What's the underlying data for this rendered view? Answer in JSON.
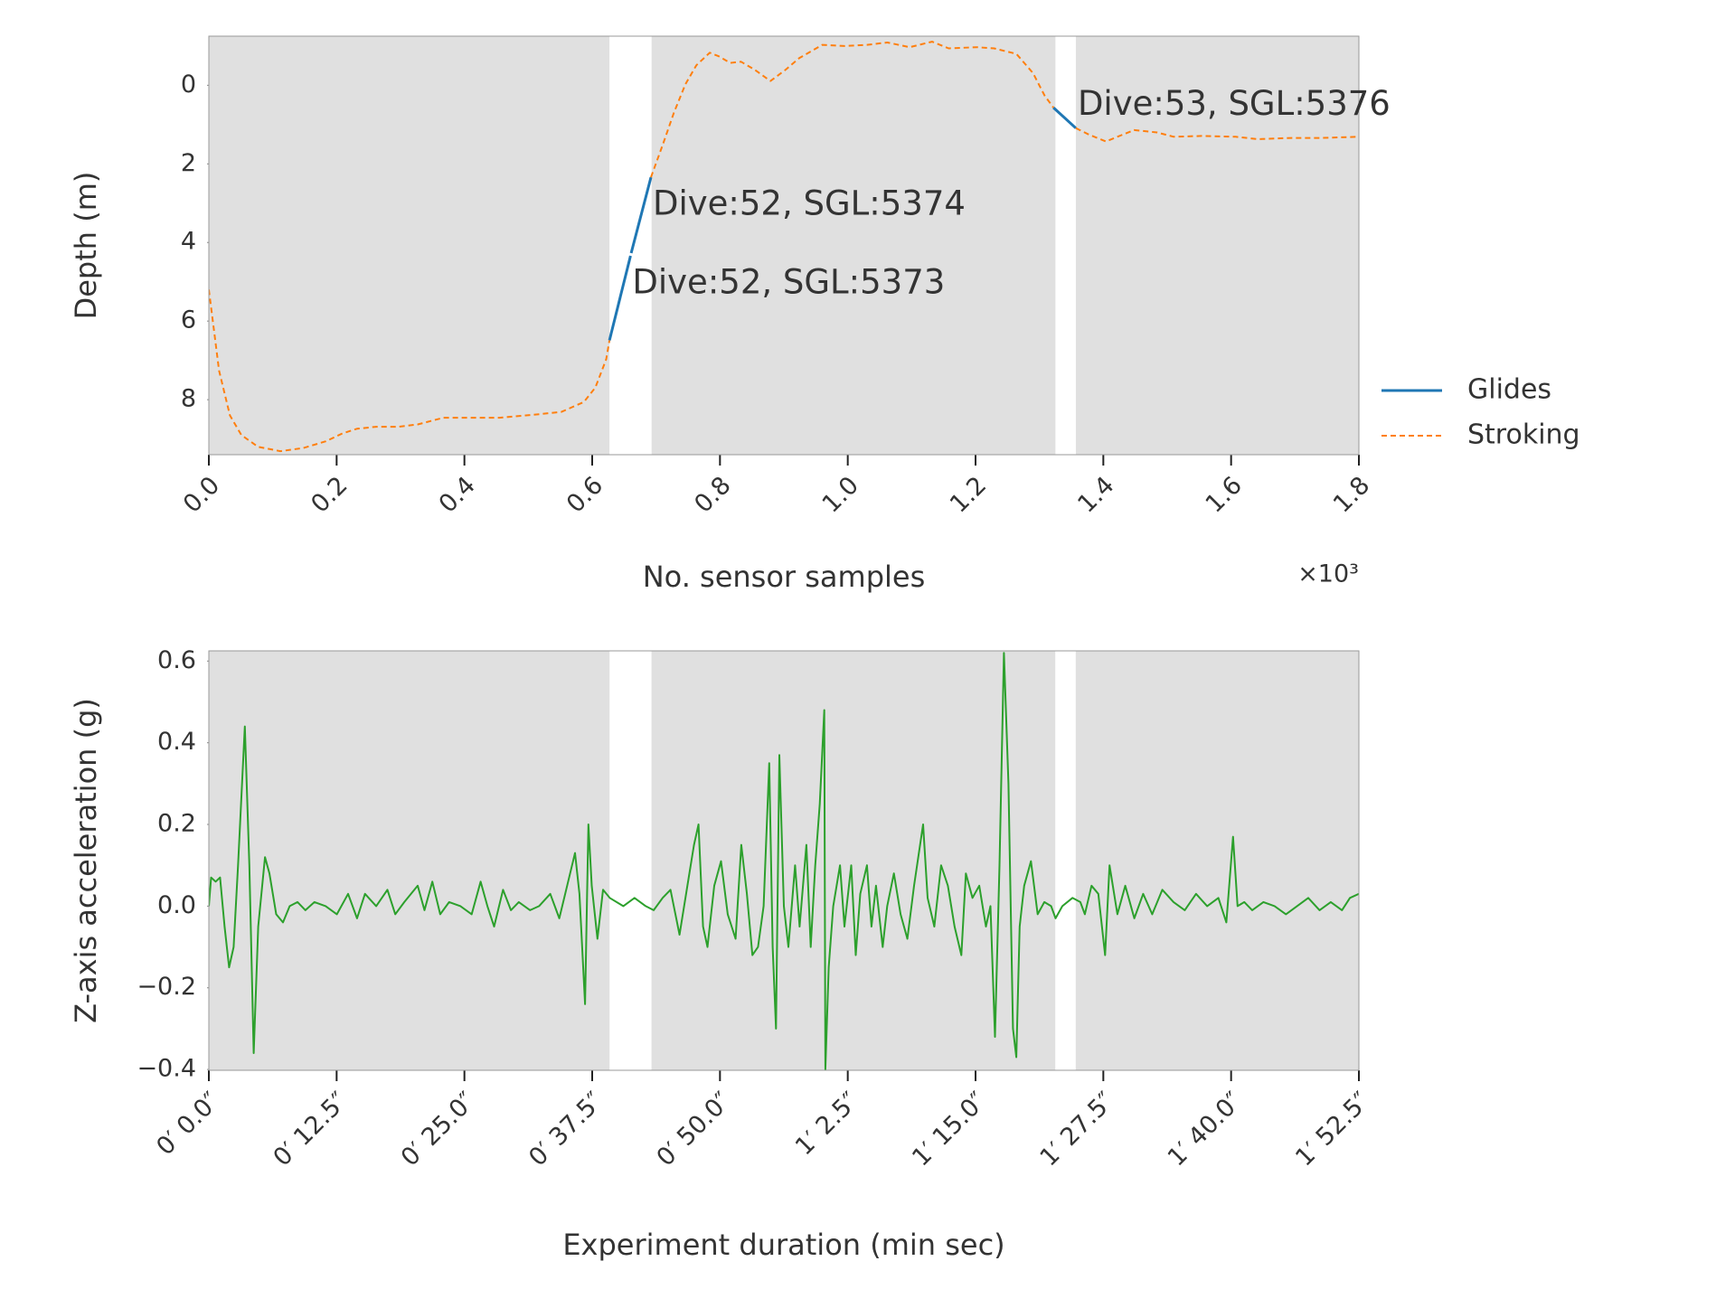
{
  "chart_data": [
    {
      "type": "line",
      "xlabel": "No. sensor samples",
      "x_offset_label": "×10³",
      "ylabel": "Depth (m)",
      "xlim": [
        0,
        1800
      ],
      "ylim": [
        9.4,
        -1.25
      ],
      "xticks": [
        {
          "value": 0,
          "label": "0.0"
        },
        {
          "value": 200,
          "label": "0.2"
        },
        {
          "value": 400,
          "label": "0.4"
        },
        {
          "value": 600,
          "label": "0.6"
        },
        {
          "value": 800,
          "label": "0.8"
        },
        {
          "value": 1000,
          "label": "1.0"
        },
        {
          "value": 1200,
          "label": "1.2"
        },
        {
          "value": 1400,
          "label": "1.4"
        },
        {
          "value": 1600,
          "label": "1.6"
        },
        {
          "value": 1800,
          "label": "1.8"
        }
      ],
      "yticks": [
        0,
        2,
        4,
        6,
        8
      ],
      "shade_color": "#e0e0e0",
      "shaded_spans": [
        [
          0,
          627
        ],
        [
          693,
          1325
        ],
        [
          1357,
          1800
        ]
      ],
      "series": [
        {
          "name": "Glides",
          "color": "#1f77b4",
          "segments": [
            {
              "x": [
                627,
                660
              ],
              "values": [
                6.49,
                4.34
              ]
            },
            {
              "x": [
                661,
                692
              ],
              "values": [
                4.27,
                2.34
              ]
            },
            {
              "x": [
                1322,
                1357
              ],
              "values": [
                0.57,
                1.09
              ]
            }
          ]
        },
        {
          "name": "Stroking",
          "color": "#ff7f0e",
          "dashed": true,
          "x": [
            0,
            16,
            33,
            51,
            77,
            112,
            148,
            183,
            209,
            232,
            262,
            297,
            327,
            367,
            411,
            455,
            517,
            552,
            587,
            605,
            622,
            627,
            660,
            692,
            711,
            728,
            746,
            763,
            784,
            798,
            816,
            833,
            854,
            879,
            903,
            924,
            960,
            995,
            1030,
            1062,
            1097,
            1132,
            1158,
            1202,
            1229,
            1264,
            1290,
            1308,
            1322,
            1340,
            1357,
            1378,
            1404,
            1422,
            1448,
            1484,
            1510,
            1554,
            1607,
            1642,
            1695,
            1739,
            1800
          ],
          "values": [
            5.2,
            7.26,
            8.4,
            8.9,
            9.2,
            9.31,
            9.23,
            9.06,
            8.86,
            8.74,
            8.69,
            8.69,
            8.63,
            8.46,
            8.46,
            8.46,
            8.37,
            8.31,
            8.06,
            7.69,
            6.97,
            6.49,
            null,
            2.34,
            1.49,
            0.69,
            -0.03,
            -0.51,
            -0.83,
            -0.74,
            -0.57,
            -0.6,
            -0.4,
            -0.11,
            -0.4,
            -0.69,
            -1.03,
            -1.0,
            -1.03,
            -1.09,
            -0.97,
            -1.11,
            -0.94,
            -0.97,
            -0.94,
            -0.8,
            -0.31,
            0.26,
            0.57,
            null,
            1.09,
            1.26,
            1.43,
            1.31,
            1.14,
            1.2,
            1.31,
            1.29,
            1.31,
            1.37,
            1.34,
            1.34,
            1.31
          ]
        }
      ],
      "annotations": [
        "Dive:52, SGL:5373",
        "Dive:52, SGL:5374",
        "Dive:53, SGL:5376"
      ],
      "legend": "right"
    },
    {
      "type": "line",
      "xlabel": "Experiment duration (min sec)",
      "ylabel": "Z-axis acceleration (g)",
      "xlim": [
        0,
        112.5
      ],
      "ylim": [
        -0.402,
        0.625
      ],
      "xticks": [
        {
          "value": 0,
          "label": "0′ 0.0″"
        },
        {
          "value": 12.5,
          "label": "0′ 12.5″"
        },
        {
          "value": 25,
          "label": "0′ 25.0″"
        },
        {
          "value": 37.5,
          "label": "0′ 37.5″"
        },
        {
          "value": 50,
          "label": "0′ 50.0″"
        },
        {
          "value": 62.5,
          "label": "1′ 2.5″"
        },
        {
          "value": 75,
          "label": "1′ 15.0″"
        },
        {
          "value": 87.5,
          "label": "1′ 27.5″"
        },
        {
          "value": 100,
          "label": "1′ 40.0″"
        },
        {
          "value": 112.5,
          "label": "1′ 52.5″"
        }
      ],
      "yticks": [
        0.6,
        0.4,
        0.2,
        {
          "value": 0,
          "label": "0.0"
        },
        {
          "value": -0.2,
          "label": "−0.2"
        },
        {
          "value": -0.4,
          "label": "−0.4"
        }
      ],
      "shade_color": "#e0e0e0",
      "shaded_spans": [
        [
          0,
          39.2
        ],
        [
          43.3,
          82.8
        ],
        [
          84.8,
          112.5
        ]
      ],
      "series": [
        {
          "color": "#2ca02c",
          "x": [
            0,
            0.22,
            0.66,
            1.1,
            1.54,
            1.98,
            2.42,
            2.86,
            3.52,
            3.96,
            4.39,
            4.83,
            5.49,
            5.93,
            6.59,
            7.25,
            7.91,
            8.68,
            9.45,
            10.33,
            11.43,
            12.52,
            13.62,
            14.5,
            15.27,
            16.37,
            17.47,
            18.24,
            19.12,
            20.43,
            21.09,
            21.86,
            22.63,
            23.51,
            24.61,
            25.71,
            26.59,
            27.25,
            27.9,
            28.78,
            29.55,
            30.32,
            31.42,
            32.3,
            33.4,
            34.28,
            35.05,
            35.82,
            36.25,
            36.8,
            37.13,
            37.46,
            38.01,
            38.56,
            39.22,
            40.54,
            41.64,
            42.74,
            43.51,
            44.39,
            45.16,
            46.04,
            46.81,
            47.46,
            47.9,
            48.34,
            48.78,
            49.44,
            50.1,
            50.76,
            51.53,
            52.08,
            52.63,
            53.17,
            53.72,
            54.27,
            54.82,
            55.15,
            55.48,
            55.81,
            56.25,
            56.69,
            57.35,
            57.79,
            58.45,
            58.88,
            59.32,
            59.76,
            60.2,
            60.31,
            60.64,
            61.08,
            61.74,
            62.18,
            62.84,
            63.28,
            63.72,
            64.38,
            64.82,
            65.26,
            65.92,
            66.36,
            67.01,
            67.67,
            68.33,
            68.99,
            69.87,
            70.31,
            70.97,
            71.63,
            72.29,
            72.95,
            73.61,
            74.05,
            74.7,
            75.36,
            76.02,
            76.46,
            76.9,
            77.34,
            77.78,
            78.22,
            78.66,
            78.99,
            79.32,
            79.76,
            80.42,
            81.08,
            81.73,
            82.39,
            82.83,
            83.49,
            84.48,
            85.25,
            85.69,
            86.35,
            87.01,
            87.67,
            88.11,
            88.88,
            89.65,
            90.53,
            91.4,
            92.28,
            93.27,
            94.37,
            95.47,
            96.57,
            97.66,
            98.76,
            99.53,
            100.19,
            100.63,
            101.29,
            102.06,
            103.16,
            104.26,
            105.36,
            106.45,
            107.55,
            108.65,
            109.75,
            110.85,
            111.62,
            112.5
          ],
          "values": [
            0.0,
            0.07,
            0.06,
            0.07,
            -0.05,
            -0.15,
            -0.1,
            0.1,
            0.44,
            0.1,
            -0.36,
            -0.05,
            0.12,
            0.08,
            -0.02,
            -0.04,
            0.0,
            0.01,
            -0.01,
            0.01,
            0.0,
            -0.02,
            0.03,
            -0.03,
            0.03,
            0.0,
            0.04,
            -0.02,
            0.01,
            0.05,
            -0.01,
            0.06,
            -0.02,
            0.01,
            0.0,
            -0.02,
            0.06,
            0.0,
            -0.05,
            0.04,
            -0.01,
            0.01,
            -0.01,
            0.0,
            0.03,
            -0.03,
            0.05,
            0.13,
            0.03,
            -0.24,
            0.2,
            0.05,
            -0.08,
            0.04,
            0.02,
            0.0,
            0.02,
            0.0,
            -0.01,
            0.02,
            0.04,
            -0.07,
            0.05,
            0.15,
            0.2,
            -0.05,
            -0.1,
            0.05,
            0.11,
            -0.02,
            -0.08,
            0.15,
            0.03,
            -0.12,
            -0.1,
            0.0,
            0.35,
            -0.1,
            -0.3,
            0.37,
            0.0,
            -0.1,
            0.1,
            -0.05,
            0.15,
            -0.1,
            0.1,
            0.25,
            0.48,
            -0.4,
            -0.15,
            0.0,
            0.1,
            -0.05,
            0.1,
            -0.12,
            0.03,
            0.1,
            -0.05,
            0.05,
            -0.1,
            0.0,
            0.08,
            -0.02,
            -0.08,
            0.05,
            0.2,
            0.02,
            -0.05,
            0.1,
            0.05,
            -0.05,
            -0.12,
            0.08,
            0.02,
            0.05,
            -0.05,
            0.0,
            -0.32,
            0.1,
            0.62,
            0.3,
            -0.3,
            -0.37,
            -0.05,
            0.05,
            0.11,
            -0.02,
            0.01,
            0.0,
            -0.03,
            0.0,
            0.02,
            0.01,
            -0.02,
            0.05,
            0.03,
            -0.12,
            0.1,
            -0.02,
            0.05,
            -0.03,
            0.03,
            -0.02,
            0.04,
            0.01,
            -0.01,
            0.03,
            0.0,
            0.02,
            -0.04,
            0.17,
            0.0,
            0.01,
            -0.01,
            0.01,
            0.0,
            -0.02,
            0.0,
            0.02,
            -0.01,
            0.01,
            -0.01,
            0.02,
            0.03
          ]
        }
      ]
    }
  ]
}
